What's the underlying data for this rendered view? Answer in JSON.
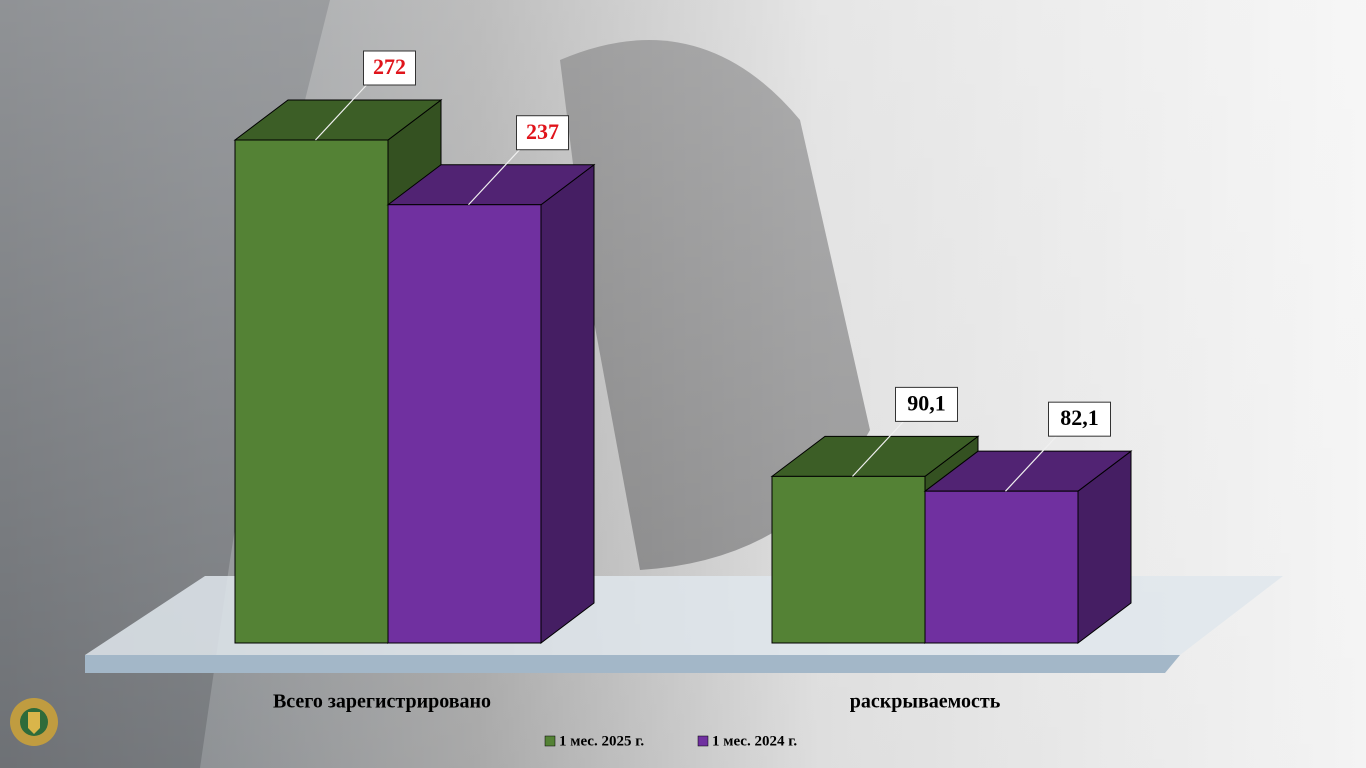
{
  "chart_data": {
    "type": "bar3d",
    "categories": [
      "Всего зарегистрировано",
      "раскрываемость"
    ],
    "series": [
      {
        "name": "1 мес. 2025 г.",
        "color": "#548235",
        "values": [
          272,
          90.1
        ],
        "value_labels": [
          "272",
          "90,1"
        ]
      },
      {
        "name": "1 мес. 2024 г.",
        "color": "#7030a0",
        "values": [
          237,
          82.1
        ],
        "value_labels": [
          "237",
          "82,1"
        ]
      }
    ]
  }
}
